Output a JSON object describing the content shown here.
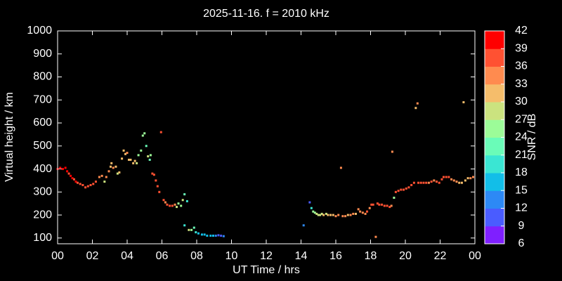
{
  "chart_data": {
    "type": "scatter",
    "title": "2025-11-16. f = 2010 kHz",
    "xlabel": "UT Time / hrs",
    "ylabel": "Virtual height / km",
    "colorbar_label": "SNR / dB",
    "xlim": [
      0,
      24
    ],
    "ylim": [
      75,
      1000
    ],
    "xticks": [
      {
        "value": 0,
        "label": "00"
      },
      {
        "value": 2,
        "label": "02"
      },
      {
        "value": 4,
        "label": "04"
      },
      {
        "value": 6,
        "label": "06"
      },
      {
        "value": 8,
        "label": "08"
      },
      10,
      12,
      14,
      16,
      18,
      20,
      22,
      {
        "value": 24,
        "label": "00"
      }
    ],
    "yticks": [
      100,
      200,
      300,
      400,
      500,
      600,
      700,
      800,
      900,
      1000
    ],
    "clim": [
      6,
      42
    ],
    "cticks": [
      6,
      9,
      12,
      15,
      18,
      21,
      24,
      27,
      30,
      33,
      36,
      39,
      42
    ],
    "colormap": [
      "#7f1fff",
      "#4a5cff",
      "#2d89f5",
      "#12bee8",
      "#3ae6d3",
      "#6afcb8",
      "#9cfc98",
      "#cbe37f",
      "#f5bd6b",
      "#ff8b4f",
      "#ff5132",
      "#ff0000"
    ],
    "x": [
      0.0,
      0.15,
      0.3,
      0.45,
      0.55,
      0.65,
      0.75,
      0.85,
      0.95,
      1.05,
      1.15,
      1.3,
      1.45,
      1.6,
      1.75,
      1.9,
      2.05,
      2.2,
      2.4,
      2.55,
      2.7,
      2.8,
      2.95,
      3.05,
      3.1,
      3.2,
      3.35,
      3.45,
      3.55,
      3.7,
      3.8,
      3.9,
      4.0,
      4.1,
      4.2,
      4.35,
      4.45,
      4.55,
      4.65,
      4.8,
      4.9,
      5.0,
      5.1,
      5.2,
      5.3,
      5.35,
      5.45,
      5.55,
      5.65,
      5.75,
      5.85,
      5.95,
      6.1,
      6.2,
      6.3,
      6.45,
      6.6,
      6.75,
      6.85,
      6.95,
      7.1,
      7.2,
      7.3,
      7.45,
      7.3,
      7.55,
      7.7,
      7.85,
      7.95,
      8.1,
      8.3,
      8.45,
      8.6,
      8.8,
      8.95,
      9.1,
      9.25,
      9.4,
      9.55,
      14.15,
      14.5,
      14.6,
      14.7,
      14.8,
      14.9,
      15.0,
      15.1,
      15.2,
      15.3,
      15.45,
      15.55,
      15.7,
      15.85,
      16.0,
      16.15,
      16.3,
      16.4,
      16.55,
      16.7,
      16.85,
      17.0,
      17.15,
      17.3,
      17.4,
      17.55,
      17.7,
      17.8,
      17.95,
      18.05,
      18.15,
      18.3,
      18.4,
      18.5,
      18.65,
      18.8,
      18.95,
      19.1,
      19.2,
      19.25,
      19.35,
      19.45,
      19.6,
      19.75,
      19.9,
      20.05,
      20.2,
      20.35,
      20.5,
      20.6,
      20.7,
      20.75,
      20.9,
      21.05,
      21.2,
      21.35,
      21.5,
      21.65,
      21.8,
      21.95,
      22.1,
      22.2,
      22.35,
      22.5,
      22.65,
      22.8,
      22.95,
      23.1,
      23.25,
      23.35,
      23.45,
      23.6,
      23.75,
      23.9
    ],
    "values": [
      400,
      405,
      400,
      405,
      390,
      380,
      370,
      360,
      355,
      345,
      340,
      335,
      330,
      320,
      325,
      330,
      335,
      345,
      365,
      370,
      345,
      365,
      390,
      410,
      425,
      405,
      410,
      380,
      385,
      445,
      480,
      465,
      470,
      440,
      440,
      425,
      435,
      425,
      460,
      480,
      545,
      555,
      500,
      455,
      440,
      460,
      380,
      375,
      350,
      325,
      300,
      560,
      265,
      255,
      245,
      240,
      240,
      245,
      235,
      250,
      240,
      265,
      290,
      260,
      155,
      135,
      135,
      145,
      125,
      120,
      115,
      115,
      110,
      110,
      110,
      110,
      112,
      110,
      108,
      155,
      255,
      230,
      215,
      210,
      205,
      200,
      200,
      205,
      200,
      205,
      200,
      200,
      200,
      195,
      200,
      405,
      195,
      195,
      200,
      200,
      205,
      205,
      225,
      215,
      210,
      205,
      215,
      230,
      245,
      245,
      105,
      250,
      245,
      245,
      240,
      240,
      235,
      240,
      475,
      275,
      300,
      305,
      310,
      310,
      315,
      320,
      330,
      340,
      665,
      685,
      340,
      340,
      340,
      340,
      340,
      345,
      350,
      345,
      340,
      355,
      365,
      365,
      365,
      355,
      350,
      345,
      340,
      340,
      690,
      350,
      360,
      360,
      365
    ],
    "snr": [
      39,
      39,
      40,
      39,
      39,
      38,
      39,
      39,
      38,
      39,
      38,
      38,
      38,
      36,
      38,
      37,
      36,
      36,
      35,
      35,
      29,
      33,
      33,
      32,
      31,
      33,
      32,
      28,
      30,
      31,
      30,
      31,
      33,
      31,
      32,
      30,
      30,
      27,
      26,
      25,
      24,
      24,
      22,
      28,
      23,
      26,
      38,
      37,
      36,
      37,
      38,
      37,
      36,
      35,
      37,
      38,
      37,
      35,
      29,
      24,
      26,
      28,
      23,
      18,
      19,
      27,
      25,
      21,
      19,
      17,
      17,
      16,
      16,
      16,
      15,
      12,
      10,
      11,
      12,
      13,
      11,
      19,
      24,
      26,
      28,
      29,
      29,
      29,
      30,
      28,
      30,
      30,
      32,
      33,
      33,
      35,
      35,
      33,
      32,
      33,
      33,
      32,
      35,
      33,
      33,
      34,
      36,
      33,
      36,
      37,
      33,
      37,
      37,
      36,
      37,
      36,
      36,
      34,
      34,
      25,
      38,
      38,
      37,
      37,
      36,
      36,
      37,
      37,
      32,
      33,
      36,
      36,
      36,
      37,
      35,
      36,
      35,
      36,
      37,
      37,
      38,
      37,
      36,
      35,
      33,
      33,
      32,
      30,
      30,
      30,
      32,
      34,
      35
    ]
  }
}
